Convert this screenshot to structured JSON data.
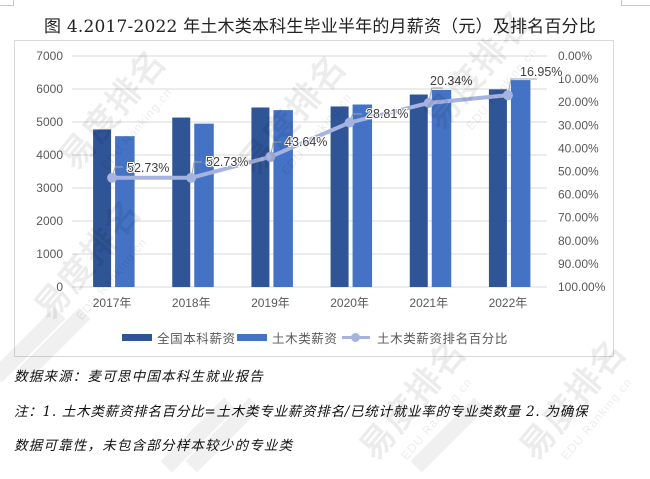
{
  "title": "图 4.2017-2022 年土木类本科生毕业半年的月薪资（元）及排名百分比",
  "chart_data": {
    "type": "bar",
    "title": "图 4.2017-2022 年土木类本科生毕业半年的月薪资（元）及排名百分比",
    "xlabel": "",
    "ylabel": "",
    "categories": [
      "2017年",
      "2018年",
      "2019年",
      "2020年",
      "2021年",
      "2022年"
    ],
    "series": [
      {
        "name": "全国本科薪资",
        "type": "bar",
        "axis": "left",
        "color": "#2F5597",
        "values": [
          4774,
          5135,
          5440,
          5471,
          5833,
          5990
        ]
      },
      {
        "name": "土木类薪资",
        "type": "bar",
        "axis": "left",
        "color": "#4472C4",
        "values": [
          4570,
          4950,
          5360,
          5530,
          5970,
          6270
        ]
      },
      {
        "name": "土木类薪资排名百分比",
        "type": "line",
        "axis": "right",
        "color": "#A6B3E0",
        "values": [
          52.73,
          52.73,
          43.64,
          28.81,
          20.34,
          16.95
        ],
        "labels": [
          "52.73%",
          "52.73%",
          "43.64%",
          "28.81%",
          "20.34%",
          "16.95%"
        ]
      }
    ],
    "y_left": {
      "min": 0,
      "max": 7000,
      "step": 1000,
      "ticks": [
        "0",
        "1000",
        "2000",
        "3000",
        "4000",
        "5000",
        "6000",
        "7000"
      ]
    },
    "y_right": {
      "min": 0,
      "max": 100,
      "step": 10,
      "reversed": true,
      "ticks": [
        "0.00%",
        "10.00%",
        "20.00%",
        "30.00%",
        "40.00%",
        "50.00%",
        "60.00%",
        "70.00%",
        "80.00%",
        "90.00%",
        "100.00%"
      ]
    },
    "grid": true,
    "legend_position": "bottom"
  },
  "notes": {
    "source": "数据来源：麦可思中国本科生就业报告",
    "note_line1": "注：1. 土木类薪资排名百分比=土木类专业薪资排名/已统计就业率的专业类数量 2. 为确保",
    "note_line2": "数据可靠性，未包含部分样本较少的专业类"
  },
  "watermark": {
    "main": "易度排名",
    "sub": "EDU Ranking.cn"
  },
  "colors": {
    "grid": "#D9D9D9",
    "axis_text": "#595959",
    "label_text": "#404040",
    "leader": "#A6A6A6"
  }
}
